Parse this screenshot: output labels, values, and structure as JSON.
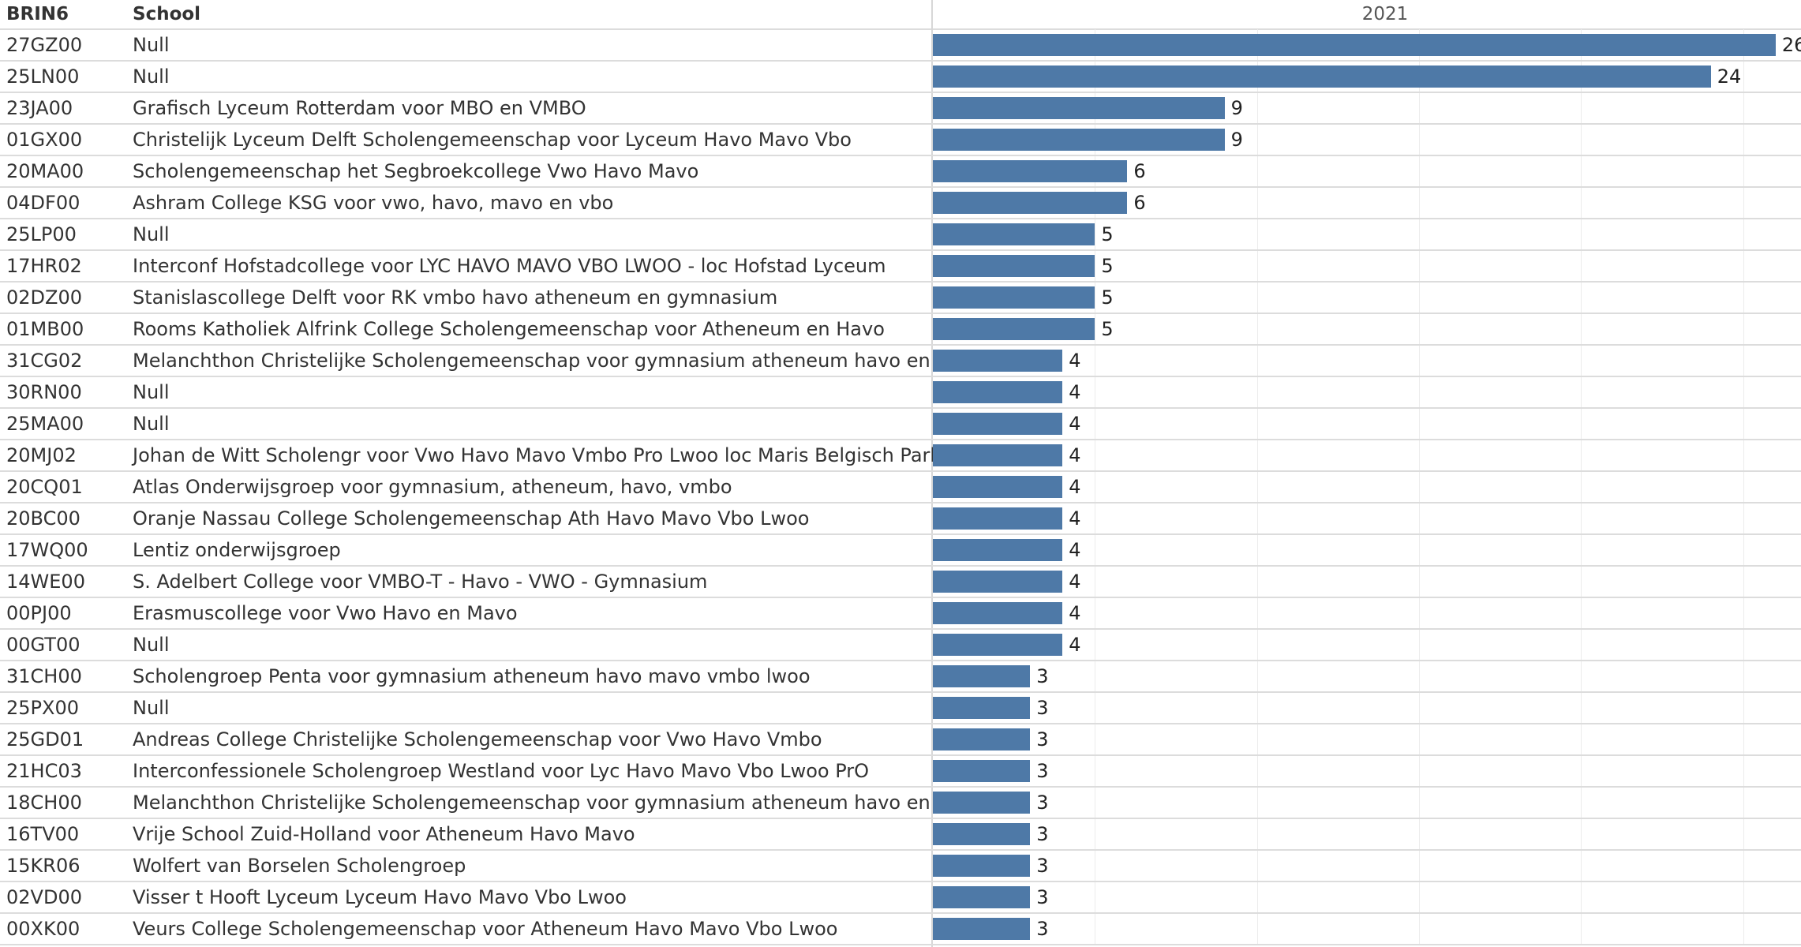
{
  "header": {
    "brin_label": "BRIN6",
    "school_label": "School",
    "column_label": "2021"
  },
  "colors": {
    "bar": "#4e79a7",
    "grid": "#ececec",
    "row_line": "#dcdcdc"
  },
  "chart_data": {
    "type": "bar",
    "orientation": "horizontal",
    "xlabel": "2021",
    "grid": true,
    "xlim": [
      0,
      28
    ],
    "categories": [
      "27GZ00",
      "25LN00",
      "23JA00",
      "01GX00",
      "20MA00",
      "04DF00",
      "25LP00",
      "17HR02",
      "02DZ00",
      "01MB00",
      "31CG02",
      "30RN00",
      "25MA00",
      "20MJ02",
      "20CQ01",
      "20BC00",
      "17WQ00",
      "14WE00",
      "00PJ00",
      "00GT00",
      "31CH00",
      "25PX00",
      "25GD01",
      "21HC03",
      "18CH00",
      "16TV00",
      "15KR06",
      "02VD00",
      "00XK00"
    ],
    "rows": [
      {
        "brin": "27GZ00",
        "school": "Null",
        "value": 26
      },
      {
        "brin": "25LN00",
        "school": "Null",
        "value": 24
      },
      {
        "brin": "23JA00",
        "school": "Grafisch Lyceum Rotterdam voor MBO en VMBO",
        "value": 9
      },
      {
        "brin": "01GX00",
        "school": "Christelijk Lyceum Delft Scholengemeenschap voor Lyceum Havo Mavo Vbo",
        "value": 9
      },
      {
        "brin": "20MA00",
        "school": "Scholengemeenschap het Segbroekcollege Vwo Havo Mavo",
        "value": 6
      },
      {
        "brin": "04DF00",
        "school": "Ashram College KSG voor vwo, havo, mavo en vbo",
        "value": 6
      },
      {
        "brin": "25LP00",
        "school": "Null",
        "value": 5
      },
      {
        "brin": "17HR02",
        "school": "Interconf Hofstadcollege voor LYC HAVO MAVO VBO LWOO - loc Hofstad Lyceum",
        "value": 5
      },
      {
        "brin": "02DZ00",
        "school": "Stanislascollege Delft voor RK vmbo havo atheneum en gymnasium",
        "value": 5
      },
      {
        "brin": "01MB00",
        "school": "Rooms Katholiek Alfrink College Scholengemeenschap voor Atheneum en Havo",
        "value": 5
      },
      {
        "brin": "31CG02",
        "school": "Melanchthon Christelijke Scholengemeenschap voor gymnasium atheneum havo en vmbo",
        "value": 4
      },
      {
        "brin": "30RN00",
        "school": "Null",
        "value": 4
      },
      {
        "brin": "25MA00",
        "school": "Null",
        "value": 4
      },
      {
        "brin": "20MJ02",
        "school": "Johan de Witt Scholengr voor Vwo Havo Mavo Vmbo Pro Lwoo loc Maris Belgisch Park",
        "value": 4
      },
      {
        "brin": "20CQ01",
        "school": "Atlas Onderwijsgroep voor gymnasium, atheneum, havo, vmbo",
        "value": 4
      },
      {
        "brin": "20BC00",
        "school": "Oranje Nassau College Scholengemeenschap Ath Havo Mavo Vbo Lwoo",
        "value": 4
      },
      {
        "brin": "17WQ00",
        "school": "Lentiz onderwijsgroep",
        "value": 4
      },
      {
        "brin": "14WE00",
        "school": "S. Adelbert College voor VMBO-T - Havo - VWO - Gymnasium",
        "value": 4
      },
      {
        "brin": "00PJ00",
        "school": "Erasmuscollege voor Vwo Havo en Mavo",
        "value": 4
      },
      {
        "brin": "00GT00",
        "school": "Null",
        "value": 4
      },
      {
        "brin": "31CH00",
        "school": "Scholengroep Penta voor gymnasium atheneum havo mavo vmbo lwoo",
        "value": 3
      },
      {
        "brin": "25PX00",
        "school": "Null",
        "value": 3
      },
      {
        "brin": "25GD01",
        "school": "Andreas College Christelijke Scholengemeenschap voor Vwo Havo Vmbo",
        "value": 3
      },
      {
        "brin": "21HC03",
        "school": "Interconfessionele Scholengroep Westland voor Lyc Havo Mavo Vbo Lwoo PrO",
        "value": 3
      },
      {
        "brin": "18CH00",
        "school": "Melanchthon Christelijke Scholengemeenschap voor gymnasium atheneum havo en vmbo",
        "value": 3
      },
      {
        "brin": "16TV00",
        "school": "Vrije School Zuid-Holland voor Atheneum Havo Mavo",
        "value": 3
      },
      {
        "brin": "15KR06",
        "school": "Wolfert van Borselen Scholengroep",
        "value": 3
      },
      {
        "brin": "02VD00",
        "school": "Visser t Hooft Lyceum Lyceum Havo Mavo Vbo Lwoo",
        "value": 3
      },
      {
        "brin": "00XK00",
        "school": "Veurs College Scholengemeenschap voor Atheneum Havo Mavo Vbo Lwoo",
        "value": 3
      }
    ]
  }
}
